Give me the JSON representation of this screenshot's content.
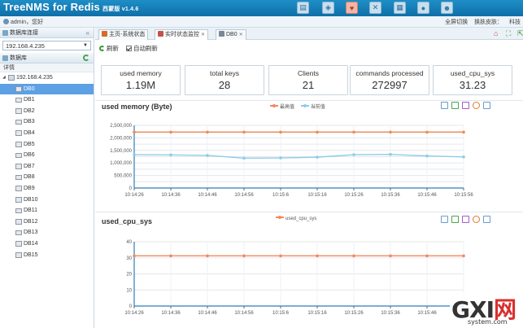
{
  "header": {
    "app_name": "TreeNMS for Redis",
    "edition": "西蒙版",
    "version": "v1.4.6",
    "tool_icons": [
      "document-icon",
      "shield-icon",
      "heart-icon",
      "wrench-icon",
      "settings-icon",
      "help-icon",
      "user-icon"
    ]
  },
  "subheader": {
    "user_text": "admin，您好",
    "links": [
      "全屏切换",
      "换肤皮肤：",
      "科技"
    ]
  },
  "sidebar": {
    "connect_title": "数据库连接",
    "host_value": "192.168.4.235",
    "db_title": "数据库",
    "detail_label": "详情",
    "tree_root": "192.168.4.235",
    "databases": [
      "DB0",
      "DB1",
      "DB2",
      "DB3",
      "DB4",
      "DB5",
      "DB6",
      "DB7",
      "DB8",
      "DB9",
      "DB10",
      "DB11",
      "DB12",
      "DB13",
      "DB14",
      "DB15"
    ],
    "selected_index": 0
  },
  "tabs": [
    {
      "label": "主页-系统状态",
      "icon_color": "#d56a2a"
    },
    {
      "label": "实时状态监控",
      "icon_color": "#c3534a"
    },
    {
      "label": "DB0",
      "icon_color": "#7a8796"
    }
  ],
  "toolbar": {
    "refresh_label": "刷新",
    "auto_refresh_label": "自动刷新",
    "auto_refresh_checked": true
  },
  "stats": [
    {
      "label": "used memory",
      "value": "1.19M"
    },
    {
      "label": "total keys",
      "value": "28"
    },
    {
      "label": "Clients",
      "value": "21"
    },
    {
      "label": "commands processed",
      "value": "272997"
    },
    {
      "label": "used_cpu_sys",
      "value": "31.23"
    }
  ],
  "chart_data": [
    {
      "type": "line",
      "title": "used memory (Byte)",
      "x": [
        "10:14:26",
        "10:14:36",
        "10:14:46",
        "10:14:56",
        "10:15:6",
        "10:15:16",
        "10:15:26",
        "10:15:36",
        "10:15:46",
        "10:15:56"
      ],
      "series": [
        {
          "name": "最高值",
          "color": "#f08b5a",
          "values": [
            2230000,
            2230000,
            2230000,
            2230000,
            2230000,
            2230000,
            2230000,
            2230000,
            2230000,
            2230000
          ]
        },
        {
          "name": "当前值",
          "color": "#8fcbe8",
          "values": [
            1330000,
            1320000,
            1300000,
            1190000,
            1200000,
            1230000,
            1330000,
            1340000,
            1280000,
            1240000
          ]
        }
      ],
      "yticks": [
        "0",
        "250,000",
        "500,000",
        "750,000",
        "1,000,000",
        "1,250,000",
        "1,500,000",
        "1,750,000",
        "2,000,000",
        "2,250,000",
        "2,500,000"
      ],
      "ylim": [
        0,
        2500000
      ],
      "grid": true,
      "legend": "top-center"
    },
    {
      "type": "line",
      "title": "used_cpu_sys",
      "x": [
        "10:14:26",
        "10:14:36",
        "10:14:46",
        "10:14:56",
        "10:15:6",
        "10:15:16",
        "10:15:26",
        "10:15:36",
        "10:15:46",
        "10:15:56"
      ],
      "series": [
        {
          "name": "used_cpu_sys",
          "color": "#f08b5a",
          "values": [
            31.23,
            31.23,
            31.23,
            31.23,
            31.23,
            31.23,
            31.23,
            31.23,
            31.23,
            31.23
          ]
        }
      ],
      "yticks": [
        "0",
        "10",
        "20",
        "30",
        "40"
      ],
      "ylim": [
        0,
        40
      ],
      "grid": true,
      "legend": "top-center"
    }
  ],
  "watermark": {
    "big_text": "GXI",
    "big_red": "网",
    "small": "system.com"
  }
}
